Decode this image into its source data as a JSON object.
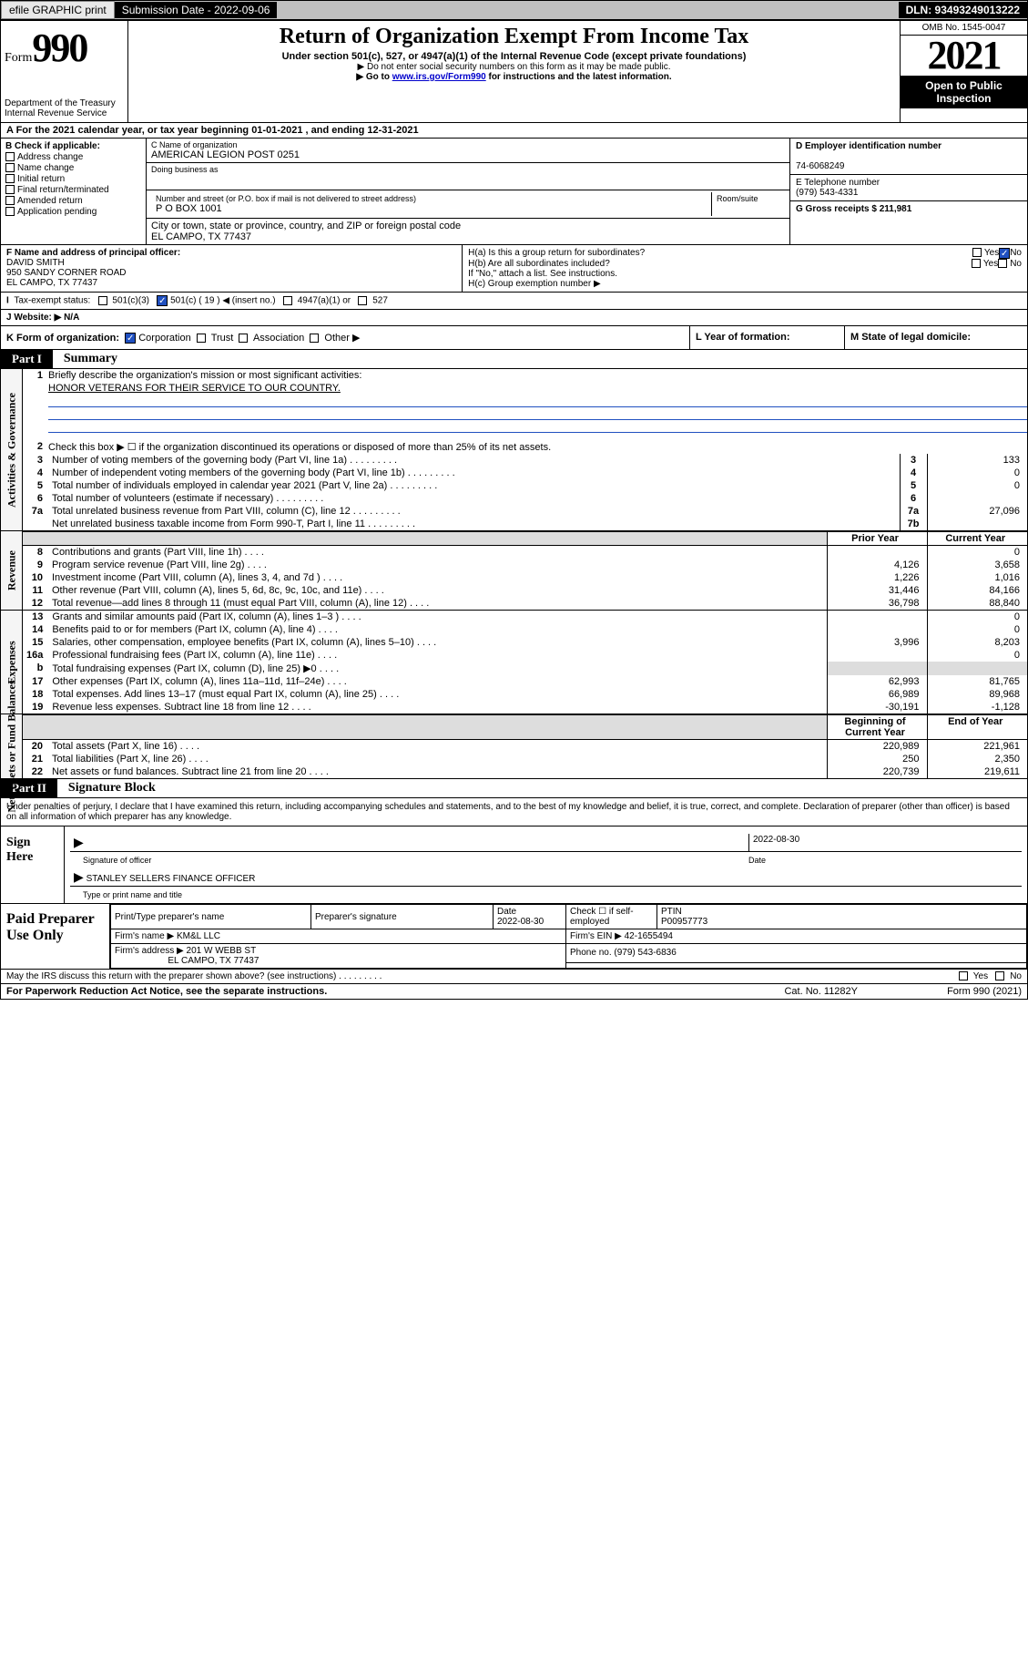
{
  "topbar": {
    "efile": "efile GRAPHIC print",
    "submission_label": "Submission Date - 2022-09-06",
    "dln": "DLN: 93493249013222"
  },
  "header": {
    "form_label": "Form",
    "form_number": "990",
    "dept": "Department of the Treasury Internal Revenue Service",
    "title": "Return of Organization Exempt From Income Tax",
    "sub1": "Under section 501(c), 527, or 4947(a)(1) of the Internal Revenue Code (except private foundations)",
    "sub2": "▶ Do not enter social security numbers on this form as it may be made public.",
    "sub3_pre": "▶ Go to ",
    "sub3_link": "www.irs.gov/Form990",
    "sub3_post": " for instructions and the latest information.",
    "omb": "OMB No. 1545-0047",
    "year": "2021",
    "open": "Open to Public Inspection"
  },
  "row_a": {
    "text": "A For the 2021 calendar year, or tax year beginning 01-01-2021    , and ending 12-31-2021"
  },
  "col_b": {
    "label": "B Check if applicable:",
    "items": [
      "Address change",
      "Name change",
      "Initial return",
      "Final return/terminated",
      "Amended return",
      "Application pending"
    ]
  },
  "col_c": {
    "name_label": "C Name of organization",
    "name": "AMERICAN LEGION POST 0251",
    "dba_label": "Doing business as",
    "dba": "",
    "addr_label": "Number and street (or P.O. box if mail is not delivered to street address)",
    "addr": "P O BOX 1001",
    "room_label": "Room/suite",
    "city_label": "City or town, state or province, country, and ZIP or foreign postal code",
    "city": "EL CAMPO, TX  77437"
  },
  "col_d": {
    "d_label": "D Employer identification number",
    "d_val": "74-6068249",
    "e_label": "E Telephone number",
    "e_val": "(979) 543-4331",
    "g_label": "G Gross receipts $ 211,981"
  },
  "row_f": {
    "f_label": "F  Name and address of principal officer:",
    "f_name": "DAVID SMITH",
    "f_addr1": "950 SANDY CORNER ROAD",
    "f_addr2": "EL CAMPO, TX  77437",
    "ha": "H(a)  Is this a group return for subordinates?",
    "hb": "H(b)  Are all subordinates included?",
    "hb_note": "If \"No,\" attach a list. See instructions.",
    "hc": "H(c)  Group exemption number ▶",
    "yes": "Yes",
    "no": "No"
  },
  "row_i": {
    "label": "Tax-exempt status:",
    "opts": [
      "501(c)(3)",
      "501(c) ( 19 ) ◀ (insert no.)",
      "4947(a)(1) or",
      "527"
    ]
  },
  "row_j": {
    "j": "J  Website: ▶  N/A"
  },
  "row_k": {
    "k": "K Form of organization:",
    "opts": [
      "Corporation",
      "Trust",
      "Association",
      "Other ▶"
    ],
    "l": "L Year of formation:",
    "m": "M State of legal domicile:"
  },
  "part1": {
    "part": "Part I",
    "title": "Summary",
    "sections": {
      "gov": "Activities & Governance",
      "rev": "Revenue",
      "exp": "Expenses",
      "net": "Net Assets or Fund Balances"
    },
    "q1": "Briefly describe the organization's mission or most significant activities:",
    "q1_val": "HONOR VETERANS FOR THEIR SERVICE TO OUR COUNTRY.",
    "q2": "Check this box ▶ ☐  if the organization discontinued its operations or disposed of more than 25% of its net assets.",
    "rows_simple": [
      {
        "n": "3",
        "d": "Number of voting members of the governing body (Part VI, line 1a)",
        "box": "3",
        "v": "133"
      },
      {
        "n": "4",
        "d": "Number of independent voting members of the governing body (Part VI, line 1b)",
        "box": "4",
        "v": "0"
      },
      {
        "n": "5",
        "d": "Total number of individuals employed in calendar year 2021 (Part V, line 2a)",
        "box": "5",
        "v": "0"
      },
      {
        "n": "6",
        "d": "Total number of volunteers (estimate if necessary)",
        "box": "6",
        "v": ""
      },
      {
        "n": "7a",
        "d": "Total unrelated business revenue from Part VIII, column (C), line 12",
        "box": "7a",
        "v": "27,096"
      },
      {
        "n": "",
        "d": "Net unrelated business taxable income from Form 990-T, Part I, line 11",
        "box": "7b",
        "v": ""
      }
    ],
    "col_hdrs": {
      "prior": "Prior Year",
      "current": "Current Year",
      "begin": "Beginning of Current Year",
      "end": "End of Year"
    },
    "rev_rows": [
      {
        "n": "8",
        "d": "Contributions and grants (Part VIII, line 1h)",
        "p": "",
        "c": "0"
      },
      {
        "n": "9",
        "d": "Program service revenue (Part VIII, line 2g)",
        "p": "4,126",
        "c": "3,658"
      },
      {
        "n": "10",
        "d": "Investment income (Part VIII, column (A), lines 3, 4, and 7d )",
        "p": "1,226",
        "c": "1,016"
      },
      {
        "n": "11",
        "d": "Other revenue (Part VIII, column (A), lines 5, 6d, 8c, 9c, 10c, and 11e)",
        "p": "31,446",
        "c": "84,166"
      },
      {
        "n": "12",
        "d": "Total revenue—add lines 8 through 11 (must equal Part VIII, column (A), line 12)",
        "p": "36,798",
        "c": "88,840"
      }
    ],
    "exp_rows": [
      {
        "n": "13",
        "d": "Grants and similar amounts paid (Part IX, column (A), lines 1–3 )",
        "p": "",
        "c": "0"
      },
      {
        "n": "14",
        "d": "Benefits paid to or for members (Part IX, column (A), line 4)",
        "p": "",
        "c": "0"
      },
      {
        "n": "15",
        "d": "Salaries, other compensation, employee benefits (Part IX, column (A), lines 5–10)",
        "p": "3,996",
        "c": "8,203"
      },
      {
        "n": "16a",
        "d": "Professional fundraising fees (Part IX, column (A), line 11e)",
        "p": "",
        "c": "0"
      },
      {
        "n": "b",
        "d": "Total fundraising expenses (Part IX, column (D), line 25) ▶0",
        "p": "shade",
        "c": "shade"
      },
      {
        "n": "17",
        "d": "Other expenses (Part IX, column (A), lines 11a–11d, 11f–24e)",
        "p": "62,993",
        "c": "81,765"
      },
      {
        "n": "18",
        "d": "Total expenses. Add lines 13–17 (must equal Part IX, column (A), line 25)",
        "p": "66,989",
        "c": "89,968"
      },
      {
        "n": "19",
        "d": "Revenue less expenses. Subtract line 18 from line 12",
        "p": "-30,191",
        "c": "-1,128"
      }
    ],
    "net_rows": [
      {
        "n": "20",
        "d": "Total assets (Part X, line 16)",
        "p": "220,989",
        "c": "221,961"
      },
      {
        "n": "21",
        "d": "Total liabilities (Part X, line 26)",
        "p": "250",
        "c": "2,350"
      },
      {
        "n": "22",
        "d": "Net assets or fund balances. Subtract line 21 from line 20",
        "p": "220,739",
        "c": "219,611"
      }
    ]
  },
  "part2": {
    "part": "Part II",
    "title": "Signature Block",
    "decl": "Under penalties of perjury, I declare that I have examined this return, including accompanying schedules and statements, and to the best of my knowledge and belief, it is true, correct, and complete. Declaration of preparer (other than officer) is based on all information of which preparer has any knowledge."
  },
  "sign": {
    "label": "Sign Here",
    "sig_label": "Signature of officer",
    "date_label": "Date",
    "date": "2022-08-30",
    "name": "STANLEY SELLERS  FINANCE OFFICER",
    "name_label": "Type or print name and title"
  },
  "prep": {
    "label": "Paid Preparer Use Only",
    "h1": "Print/Type preparer's name",
    "h2": "Preparer's signature",
    "h3": "Date",
    "h3_val": "2022-08-30",
    "h4": "Check ☐ if self-employed",
    "h5": "PTIN",
    "h5_val": "P00957773",
    "firm_name_label": "Firm's name    ▶",
    "firm_name": "KM&L LLC",
    "firm_ein_label": "Firm's EIN ▶",
    "firm_ein": "42-1655494",
    "firm_addr_label": "Firm's address ▶",
    "firm_addr1": "201 W WEBB ST",
    "firm_addr2": "EL CAMPO, TX  77437",
    "phone_label": "Phone no.",
    "phone": "(979) 543-6836"
  },
  "footer": {
    "discuss": "May the IRS discuss this return with the preparer shown above? (see instructions)",
    "paperwork": "For Paperwork Reduction Act Notice, see the separate instructions.",
    "cat": "Cat. No. 11282Y",
    "form": "Form 990 (2021)",
    "yes": "Yes",
    "no": "No"
  }
}
